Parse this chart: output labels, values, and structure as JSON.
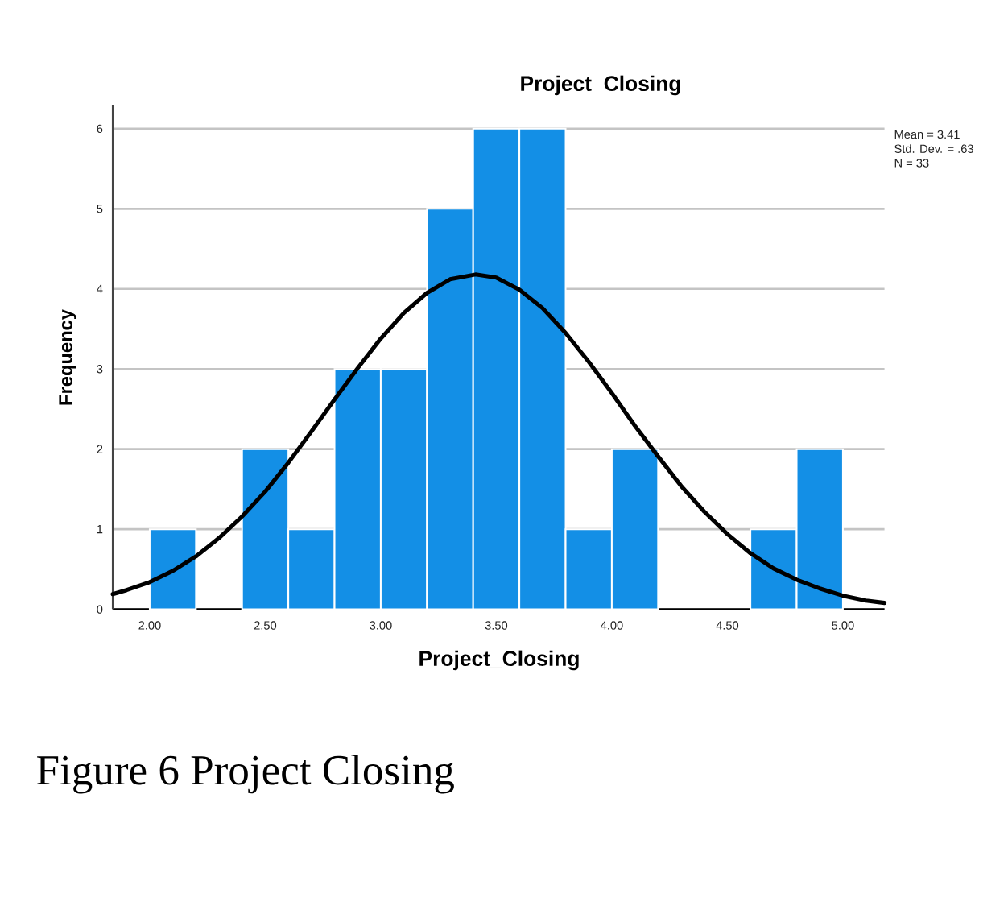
{
  "chart_data": {
    "type": "histogram",
    "title": "Project_Closing",
    "xlabel": "Project_Closing",
    "ylabel": "Frequency",
    "series": [
      {
        "type": "histogram",
        "color": "#138fe6",
        "bins": [
          2.0,
          2.2,
          2.4,
          2.6,
          2.8,
          3.0,
          3.2,
          3.4,
          3.6,
          3.8,
          4.0,
          4.2,
          4.4,
          4.6,
          4.8,
          5.0
        ],
        "values": [
          1,
          0,
          2,
          1,
          3,
          3,
          5,
          6,
          6,
          1,
          2,
          0,
          0,
          1,
          2
        ]
      },
      {
        "type": "line",
        "color": "#000000",
        "x": [
          1.84,
          1.9,
          2.0,
          2.1,
          2.2,
          2.3,
          2.4,
          2.5,
          2.6,
          2.7,
          2.8,
          2.9,
          3.0,
          3.1,
          3.2,
          3.3,
          3.41,
          3.5,
          3.6,
          3.7,
          3.8,
          3.9,
          4.0,
          4.1,
          4.2,
          4.3,
          4.4,
          4.5,
          4.6,
          4.7,
          4.8,
          4.9,
          5.0,
          5.1,
          5.18
        ],
        "values": [
          0.19,
          0.24,
          0.34,
          0.48,
          0.66,
          0.89,
          1.16,
          1.47,
          1.83,
          2.22,
          2.62,
          3.01,
          3.38,
          3.7,
          3.95,
          4.12,
          4.18,
          4.14,
          3.99,
          3.76,
          3.45,
          3.09,
          2.7,
          2.29,
          1.91,
          1.54,
          1.22,
          0.94,
          0.7,
          0.51,
          0.37,
          0.26,
          0.17,
          0.11,
          0.08
        ]
      }
    ],
    "xlim": [
      1.84,
      5.18
    ],
    "ylim": [
      0,
      6.3
    ],
    "xticks": [
      {
        "value": 2.0,
        "label": "2.00"
      },
      {
        "value": 2.5,
        "label": "2.50"
      },
      {
        "value": 3.0,
        "label": "3.00"
      },
      {
        "value": 3.5,
        "label": "3.50"
      },
      {
        "value": 4.0,
        "label": "4.00"
      },
      {
        "value": 4.5,
        "label": "4.50"
      },
      {
        "value": 5.0,
        "label": "5.00"
      }
    ],
    "yticks": [
      0,
      1,
      2,
      3,
      4,
      5,
      6
    ],
    "grid": "y",
    "annotations": [
      "Mean = 3.41",
      "Std. Dev. = .63",
      "N = 33",
      "Figure 6 Project Closing"
    ]
  }
}
